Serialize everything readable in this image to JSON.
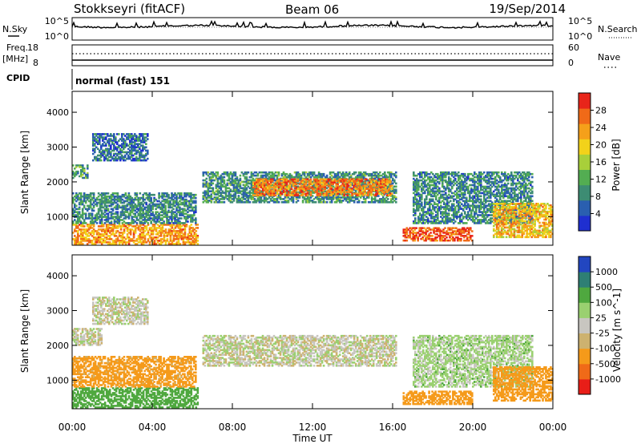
{
  "header": {
    "station": "Stokkseyri (fitACF)",
    "beam": "Beam 06",
    "date": "19/Sep/2014"
  },
  "top_panels": {
    "nsky_label": "N.Sky",
    "nsky_ticks": [
      "10^5",
      "10^0"
    ],
    "nsearch_label": "N.Search",
    "nsearch_ticks": [
      "10^5",
      "10^0"
    ],
    "freq_label": "Freq.",
    "freq_unit": "[MHz]",
    "freq_ticks": [
      "18",
      "8"
    ],
    "nave_label": "Nave",
    "nave_ticks": [
      "60",
      "0"
    ],
    "cpid_label": "CPID",
    "cpid_value": "normal (fast) 151"
  },
  "colors": {
    "power_scale": [
      "#1f2fd0",
      "#2a5fb0",
      "#3d8c73",
      "#53ad52",
      "#a8cf3a",
      "#f2d21a",
      "#f5a01a",
      "#f06a18",
      "#e8251a"
    ],
    "velocity_scale": [
      "#e81e18",
      "#f06a18",
      "#f59a1a",
      "#cdb26f",
      "#c8c6c0",
      "#9ad070",
      "#4fa83f",
      "#2e7f74",
      "#2246c0"
    ]
  },
  "chart_data": [
    {
      "type": "heatmap",
      "title": "Power",
      "xlabel": "Time UT",
      "ylabel": "Slant Range [km]",
      "x_ticks": [
        "00:00",
        "04:00",
        "08:00",
        "12:00",
        "16:00",
        "20:00",
        "00:00"
      ],
      "y_ticks": [
        "1000",
        "2000",
        "3000",
        "4000"
      ],
      "xlim_hours": [
        0,
        24
      ],
      "ylim_km": [
        180,
        4600
      ],
      "colorbar": {
        "label": "Power [dB]",
        "ticks": [
          "28",
          "24",
          "20",
          "16",
          "12",
          "8",
          "4"
        ],
        "range": [
          0,
          30
        ]
      },
      "regions": [
        {
          "t": [
            0.0,
            6.3
          ],
          "r": [
            200,
            800
          ],
          "value": 22
        },
        {
          "t": [
            0.0,
            6.2
          ],
          "r": [
            800,
            1700
          ],
          "value": 8
        },
        {
          "t": [
            1.0,
            3.8
          ],
          "r": [
            2600,
            3400
          ],
          "value": 6
        },
        {
          "t": [
            0.0,
            0.8
          ],
          "r": [
            2100,
            2500
          ],
          "value": 10
        },
        {
          "t": [
            6.5,
            16.2
          ],
          "r": [
            1400,
            2300
          ],
          "value": 9
        },
        {
          "t": [
            9.0,
            16.0
          ],
          "r": [
            1600,
            2100
          ],
          "value": 24
        },
        {
          "t": [
            16.5,
            20.0
          ],
          "r": [
            300,
            700
          ],
          "value": 26
        },
        {
          "t": [
            17.0,
            23.0
          ],
          "r": [
            800,
            2300
          ],
          "value": 8
        },
        {
          "t": [
            21.0,
            24.0
          ],
          "r": [
            400,
            1400
          ],
          "value": 20
        }
      ]
    },
    {
      "type": "heatmap",
      "title": "Velocity",
      "xlabel": "Time UT",
      "ylabel": "Slant Range [km]",
      "x_ticks": [
        "00:00",
        "04:00",
        "08:00",
        "12:00",
        "16:00",
        "20:00",
        "00:00"
      ],
      "y_ticks": [
        "1000",
        "2000",
        "3000",
        "4000"
      ],
      "xlim_hours": [
        0,
        24
      ],
      "ylim_km": [
        180,
        4600
      ],
      "colorbar": {
        "label": "Velocity [m s^-1]",
        "ticks": [
          "1000",
          "500",
          "100",
          "25",
          "-25",
          "-100",
          "-500",
          "-1000"
        ],
        "range": [
          -1000,
          1000
        ]
      },
      "regions": [
        {
          "t": [
            0.0,
            6.3
          ],
          "r": [
            200,
            800
          ],
          "value": 300
        },
        {
          "t": [
            0.0,
            6.2
          ],
          "r": [
            800,
            1700
          ],
          "value": -150
        },
        {
          "t": [
            1.0,
            3.8
          ],
          "r": [
            2600,
            3400
          ],
          "value": 0
        },
        {
          "t": [
            0.0,
            1.5
          ],
          "r": [
            2000,
            2500
          ],
          "value": 0
        },
        {
          "t": [
            6.5,
            16.2
          ],
          "r": [
            1400,
            2300
          ],
          "value": 0
        },
        {
          "t": [
            16.5,
            20.0
          ],
          "r": [
            300,
            700
          ],
          "value": -400
        },
        {
          "t": [
            17.0,
            23.0
          ],
          "r": [
            800,
            2300
          ],
          "value": 50
        },
        {
          "t": [
            21.0,
            24.0
          ],
          "r": [
            400,
            1400
          ],
          "value": -200
        }
      ]
    }
  ]
}
